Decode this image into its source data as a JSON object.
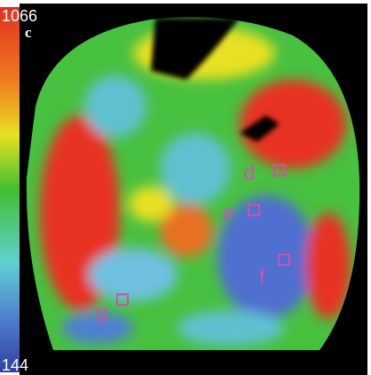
{
  "colorbar": {
    "max": 1066,
    "min": 144
  },
  "panel_label": "c",
  "regions": [
    {
      "label": "d"
    },
    {
      "label": "e"
    },
    {
      "label": "f"
    },
    {
      "label": "g"
    }
  ]
}
